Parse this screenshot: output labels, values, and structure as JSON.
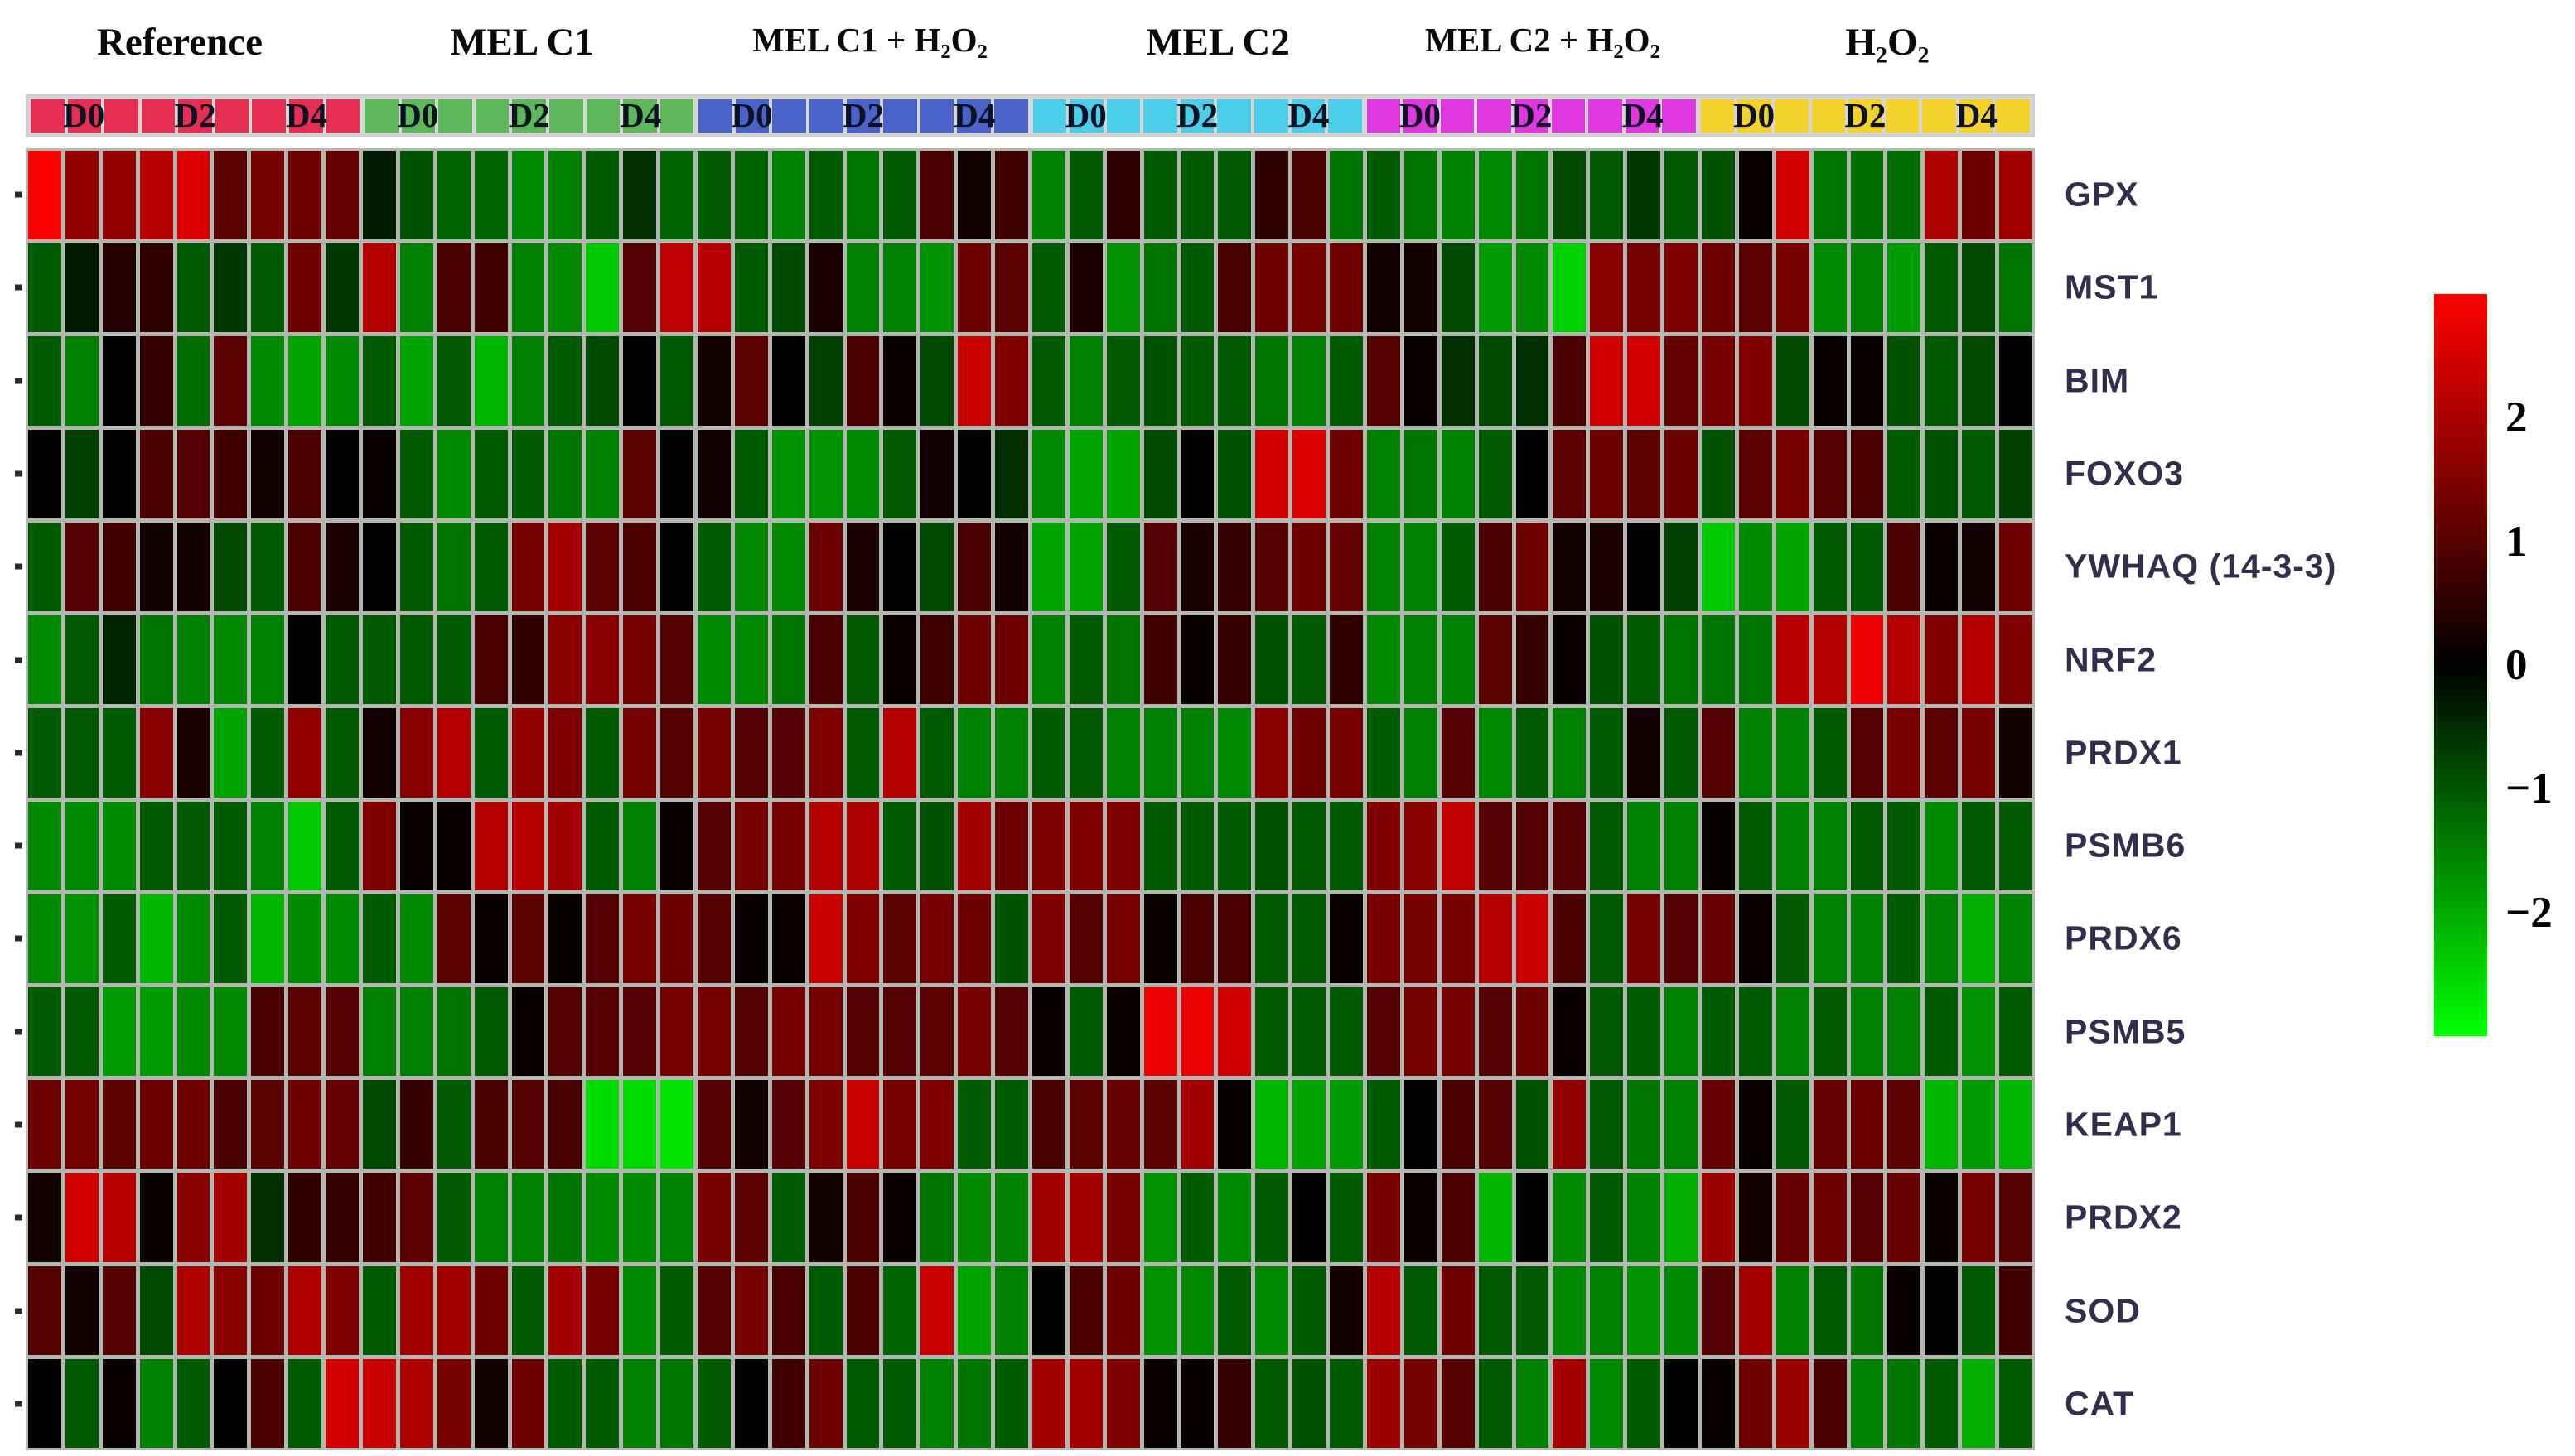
{
  "figure": {
    "background": "#ffffff",
    "divider_color": "#b2b7b2"
  },
  "header": {
    "groups": [
      {
        "label": "Reference",
        "band_color": "#e62e52"
      },
      {
        "label": "MEL C1",
        "band_color": "#5cb85a"
      },
      {
        "label": "MEL C1 + H₂O₂",
        "band_color": "#4a63c8"
      },
      {
        "label": "MEL C2",
        "band_color": "#4ccdea"
      },
      {
        "label": "MEL C2 + H₂O₂",
        "band_color": "#e038e0"
      },
      {
        "label": "H₂O₂",
        "band_color": "#f3d32b"
      }
    ],
    "timepoints": [
      "D0",
      "D2",
      "D4"
    ],
    "replicates_per_timepoint": 3
  },
  "colorbar": {
    "tick_labels": [
      "2",
      "1",
      "0",
      "−1",
      "−2"
    ],
    "tick_values": [
      2,
      1,
      0,
      -1,
      -2
    ],
    "top_color": "#ff0000",
    "mid_color": "#000000",
    "bottom_color": "#00ff00"
  },
  "chart_data": {
    "type": "heatmap",
    "genes": [
      "GPX",
      "MST1",
      "BIM",
      "FOXO3",
      "YWHAQ (14-3-3)",
      "NRF2",
      "PRDX1",
      "PSMB6",
      "PRDX6",
      "PSMB5",
      "KEAP1",
      "PRDX2",
      "SOD",
      "CAT"
    ],
    "column_groups": [
      "Reference",
      "MEL C1",
      "MEL C1 + H2O2",
      "MEL C2",
      "MEL C2 + H2O2",
      "H2O2"
    ],
    "timepoints_per_group": [
      "D0",
      "D2",
      "D4"
    ],
    "replicates_per_timepoint": 3,
    "total_columns": 54,
    "value_range": [
      -3,
      3
    ],
    "colormap": "red-black-green",
    "values": [
      [
        2.8,
        1.6,
        1.6,
        2.0,
        2.4,
        1.0,
        1.3,
        1.2,
        1.1,
        -0.3,
        -0.9,
        -1.1,
        -1.1,
        -1.5,
        -1.4,
        -1.0,
        -0.5,
        -1.1,
        -1.0,
        -1.1,
        -1.4,
        -1.0,
        -1.3,
        -1.0,
        0.8,
        0.2,
        0.7,
        -1.4,
        -1.0,
        0.5,
        -1.0,
        -1.0,
        -1.0,
        0.5,
        0.8,
        -1.3,
        -1.0,
        -1.3,
        -1.4,
        -1.5,
        -1.3,
        -0.8,
        -1.0,
        -0.6,
        -1.0,
        -0.9,
        0.1,
        2.3,
        -1.3,
        -1.2,
        -1.2,
        1.9,
        1.2,
        1.8
      ],
      [
        -1.0,
        -0.3,
        0.4,
        0.5,
        -1.0,
        -0.6,
        -1.0,
        1.2,
        -0.6,
        2.0,
        -1.4,
        0.8,
        0.7,
        -1.4,
        -1.5,
        -2.2,
        0.9,
        2.1,
        2.0,
        -1.0,
        -0.8,
        0.3,
        -1.4,
        -1.4,
        -1.6,
        1.2,
        1.0,
        -1.0,
        0.3,
        -1.6,
        -1.3,
        -1.0,
        0.8,
        1.2,
        1.3,
        1.2,
        0.2,
        0.2,
        -0.8,
        -1.7,
        -1.5,
        -2.3,
        1.5,
        1.3,
        1.4,
        1.2,
        1.0,
        1.3,
        -1.5,
        -1.4,
        -1.7,
        -1.0,
        -0.8,
        -1.3
      ],
      [
        -1.0,
        -1.4,
        0.0,
        0.6,
        -1.2,
        1.0,
        -1.5,
        -1.8,
        -1.5,
        -1.0,
        -1.8,
        -1.0,
        -2.0,
        -1.4,
        -1.0,
        -0.8,
        0.0,
        -1.0,
        0.2,
        1.0,
        0.0,
        -0.7,
        0.8,
        0.1,
        -0.8,
        2.2,
        1.4,
        -1.0,
        -1.4,
        -1.0,
        -0.9,
        -1.0,
        -1.0,
        -1.3,
        -1.4,
        -1.0,
        0.9,
        0.1,
        -0.5,
        -0.8,
        -0.5,
        0.8,
        2.3,
        2.3,
        1.1,
        1.3,
        1.4,
        -0.8,
        0.1,
        0.1,
        -0.9,
        -1.0,
        -0.8,
        0.0
      ],
      [
        0.0,
        -0.7,
        0.0,
        0.8,
        0.9,
        0.7,
        0.2,
        0.8,
        0.0,
        0.1,
        -1.0,
        -1.5,
        -1.0,
        -1.0,
        -1.3,
        -1.4,
        1.0,
        0.0,
        0.2,
        -1.0,
        -1.6,
        -1.6,
        -1.5,
        -1.0,
        0.2,
        0.0,
        -0.5,
        -1.5,
        -1.8,
        -1.8,
        -0.8,
        0.0,
        -0.9,
        2.3,
        2.4,
        1.2,
        -1.4,
        -1.3,
        -1.4,
        -1.0,
        0.0,
        1.0,
        1.2,
        1.0,
        1.2,
        -0.9,
        1.0,
        1.3,
        0.9,
        0.8,
        -1.0,
        -0.9,
        -1.0,
        -0.7
      ],
      [
        -1.0,
        0.9,
        0.7,
        0.2,
        0.2,
        -0.8,
        -1.0,
        0.8,
        0.3,
        0.0,
        -1.0,
        -1.3,
        -1.0,
        1.3,
        1.8,
        1.0,
        0.8,
        0.0,
        -1.0,
        -1.5,
        -1.5,
        1.2,
        0.3,
        0.0,
        -0.8,
        0.8,
        0.2,
        -1.8,
        -1.8,
        -1.0,
        0.9,
        0.3,
        0.6,
        0.9,
        1.2,
        1.1,
        -1.4,
        -1.4,
        -1.0,
        0.8,
        1.2,
        0.2,
        0.3,
        0.0,
        -0.7,
        -2.2,
        -1.5,
        -1.8,
        -1.0,
        -1.0,
        0.8,
        0.1,
        0.2,
        1.2
      ],
      [
        -1.5,
        -1.0,
        -0.4,
        -1.3,
        -1.4,
        -1.5,
        -1.4,
        0.0,
        -1.0,
        -1.0,
        -1.0,
        -1.0,
        0.8,
        0.5,
        1.5,
        1.5,
        1.3,
        0.9,
        -1.5,
        -1.5,
        -1.3,
        0.8,
        -1.0,
        0.1,
        0.7,
        1.2,
        1.2,
        -1.4,
        -1.0,
        -1.3,
        0.7,
        0.1,
        0.6,
        -0.9,
        -1.0,
        0.5,
        -1.5,
        -1.4,
        -1.4,
        1.0,
        0.6,
        0.1,
        -0.9,
        -1.0,
        -1.3,
        -1.3,
        -1.3,
        2.0,
        2.0,
        2.6,
        2.0,
        1.4,
        2.0,
        1.4
      ],
      [
        -1.0,
        -1.0,
        -1.0,
        1.5,
        0.3,
        -1.8,
        -1.0,
        1.6,
        -1.0,
        0.2,
        1.5,
        2.0,
        -1.0,
        1.6,
        1.4,
        -1.0,
        1.3,
        0.9,
        1.3,
        0.9,
        0.9,
        1.4,
        -1.0,
        2.0,
        -1.0,
        -1.4,
        -1.4,
        -1.0,
        -1.0,
        -1.4,
        -1.4,
        -1.4,
        -1.5,
        1.5,
        1.2,
        1.3,
        -1.0,
        -1.4,
        0.9,
        -1.5,
        -1.0,
        -1.4,
        -1.0,
        0.2,
        -1.0,
        0.9,
        -1.4,
        -1.4,
        -1.0,
        0.9,
        1.3,
        1.0,
        1.3,
        0.2
      ],
      [
        -1.5,
        -1.5,
        -1.5,
        -1.0,
        -1.0,
        -1.0,
        -1.4,
        -2.2,
        -1.0,
        1.4,
        0.1,
        0.1,
        2.0,
        2.0,
        1.8,
        -1.0,
        -1.4,
        0.1,
        0.9,
        1.3,
        1.3,
        2.0,
        1.9,
        -1.0,
        -0.9,
        1.8,
        1.2,
        1.4,
        1.4,
        1.4,
        -1.0,
        -1.0,
        -1.0,
        -0.9,
        -1.0,
        -1.0,
        1.4,
        1.5,
        2.1,
        0.9,
        0.9,
        0.9,
        -1.0,
        -1.4,
        -1.4,
        0.1,
        -1.0,
        -1.4,
        -1.4,
        -1.0,
        -1.0,
        -1.5,
        -1.0,
        -1.0
      ],
      [
        -1.5,
        -1.6,
        -1.0,
        -2.0,
        -1.5,
        -1.0,
        -2.0,
        -1.5,
        -1.5,
        -1.0,
        -1.5,
        1.0,
        0.1,
        1.0,
        0.1,
        0.9,
        1.3,
        1.2,
        0.9,
        0.1,
        0.1,
        2.2,
        1.4,
        1.0,
        1.3,
        1.2,
        -0.9,
        1.4,
        0.9,
        1.3,
        0.1,
        0.8,
        0.8,
        -1.0,
        -1.0,
        0.1,
        1.3,
        1.3,
        1.3,
        2.0,
        2.2,
        0.8,
        -1.0,
        1.3,
        0.9,
        1.1,
        0.1,
        -1.0,
        -1.4,
        -1.4,
        -1.0,
        -1.4,
        -1.9,
        -1.4
      ],
      [
        -1.0,
        -1.0,
        -1.7,
        -1.7,
        -1.5,
        -1.5,
        0.8,
        1.0,
        0.9,
        -1.4,
        -1.4,
        -1.3,
        -1.0,
        0.1,
        0.9,
        0.9,
        0.9,
        1.3,
        1.3,
        0.9,
        1.3,
        1.3,
        0.9,
        0.9,
        1.0,
        1.3,
        0.9,
        0.1,
        -1.0,
        0.1,
        2.6,
        2.6,
        2.3,
        -1.0,
        -1.0,
        -1.0,
        0.9,
        1.3,
        1.3,
        0.9,
        1.2,
        0.1,
        -1.0,
        -1.0,
        -1.4,
        -1.0,
        -1.0,
        -1.4,
        -1.0,
        -1.4,
        -1.4,
        -1.0,
        -1.6,
        -1.0
      ],
      [
        1.2,
        1.3,
        1.0,
        1.2,
        1.2,
        0.8,
        1.0,
        1.2,
        1.1,
        -0.8,
        0.6,
        -1.0,
        0.8,
        0.9,
        0.8,
        -2.4,
        -2.4,
        -2.5,
        0.9,
        0.2,
        0.9,
        1.4,
        2.2,
        1.3,
        1.4,
        -1.0,
        -1.0,
        0.8,
        1.0,
        1.1,
        1.0,
        1.8,
        0.1,
        -2.0,
        -1.8,
        -1.7,
        -1.0,
        0.0,
        0.8,
        0.9,
        -0.9,
        1.6,
        -1.0,
        -1.3,
        -1.4,
        1.1,
        0.1,
        -1.0,
        1.1,
        1.2,
        1.0,
        -2.0,
        -1.7,
        -2.0
      ],
      [
        0.2,
        2.3,
        2.0,
        0.1,
        1.5,
        1.8,
        -0.5,
        0.5,
        0.6,
        0.7,
        1.0,
        -1.0,
        -1.4,
        -1.4,
        -1.3,
        -1.5,
        -1.5,
        -1.4,
        1.3,
        1.0,
        -1.0,
        0.2,
        0.8,
        0.1,
        -1.3,
        -1.5,
        -1.4,
        1.8,
        1.8,
        1.3,
        -1.6,
        -1.0,
        -1.5,
        -1.0,
        0.0,
        -1.0,
        1.3,
        0.1,
        0.8,
        -2.0,
        0.0,
        -1.5,
        -1.0,
        -1.4,
        -1.9,
        1.7,
        0.2,
        1.1,
        1.2,
        0.9,
        1.1,
        0.1,
        1.3,
        0.9
      ],
      [
        0.9,
        0.2,
        0.9,
        -0.8,
        1.9,
        1.5,
        1.2,
        1.9,
        1.4,
        -1.0,
        1.8,
        1.8,
        1.2,
        -1.0,
        1.8,
        1.3,
        -1.5,
        -1.0,
        0.9,
        1.3,
        0.8,
        -1.0,
        0.8,
        -1.1,
        2.2,
        -1.8,
        -1.4,
        0.0,
        0.8,
        1.2,
        -1.6,
        -1.5,
        -1.0,
        -1.5,
        -1.0,
        0.2,
        2.0,
        -1.0,
        1.2,
        -1.0,
        -1.0,
        -1.5,
        -1.4,
        -1.6,
        -1.5,
        0.9,
        1.8,
        -1.4,
        -1.0,
        -1.3,
        0.1,
        0.0,
        -1.0,
        0.7
      ],
      [
        0.0,
        -1.0,
        0.1,
        -1.4,
        -1.0,
        0.0,
        0.8,
        -1.0,
        2.3,
        2.2,
        1.9,
        1.3,
        0.2,
        1.2,
        -1.0,
        -1.0,
        -1.4,
        -1.3,
        -1.0,
        0.0,
        0.7,
        1.2,
        -1.0,
        -1.0,
        -1.4,
        -1.3,
        -1.0,
        1.8,
        1.8,
        1.4,
        0.1,
        0.1,
        0.6,
        -1.0,
        -0.9,
        -1.0,
        1.7,
        1.3,
        0.9,
        -1.0,
        -1.4,
        1.8,
        -1.5,
        -1.0,
        0.0,
        0.1,
        1.2,
        1.7,
        0.8,
        -1.4,
        -1.3,
        -1.0,
        -1.9,
        -1.0
      ]
    ]
  }
}
